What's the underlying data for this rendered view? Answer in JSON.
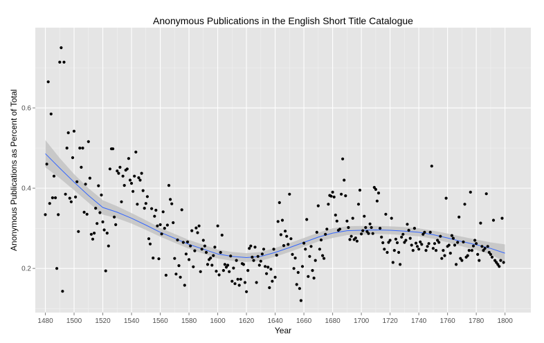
{
  "chart_data": {
    "type": "scatter",
    "title": "Anonymous Publications in the English Short Title Catalogue",
    "xlabel": "Year",
    "ylabel": "Anonymous Publications as Percent of Total",
    "xlim": [
      1473,
      1818
    ],
    "ylim": [
      0.09,
      0.8
    ],
    "x_ticks": [
      "1480",
      "1500",
      "1520",
      "1540",
      "1560",
      "1580",
      "1600",
      "1620",
      "1640",
      "1660",
      "1680",
      "1700",
      "1720",
      "1740",
      "1760",
      "1780",
      "1800"
    ],
    "y_ticks": [
      "0.2",
      "0.4",
      "0.6"
    ],
    "grid": true,
    "legend": "none",
    "colors": {
      "panel": "#e5e5e5",
      "grid_major": "#ffffff",
      "grid_minor": "#f2f2f2",
      "point": "#000000",
      "smooth_line": "#3366ff",
      "confidence_band": "#bdbdbd"
    },
    "points": [
      [
        1480,
        0.334
      ],
      [
        1481,
        0.46
      ],
      [
        1482,
        0.665
      ],
      [
        1483,
        0.362
      ],
      [
        1484,
        0.585
      ],
      [
        1485,
        0.376
      ],
      [
        1486,
        0.43
      ],
      [
        1487,
        0.376
      ],
      [
        1488,
        0.2
      ],
      [
        1489,
        0.334
      ],
      [
        1490,
        0.714
      ],
      [
        1491,
        0.75
      ],
      [
        1492,
        0.143
      ],
      [
        1493,
        0.714
      ],
      [
        1494,
        0.385
      ],
      [
        1495,
        0.5
      ],
      [
        1496,
        0.538
      ],
      [
        1497,
        0.375
      ],
      [
        1498,
        0.366
      ],
      [
        1499,
        0.476
      ],
      [
        1500,
        0.542
      ],
      [
        1501,
        0.378
      ],
      [
        1502,
        0.416
      ],
      [
        1503,
        0.292
      ],
      [
        1504,
        0.5
      ],
      [
        1505,
        0.452
      ],
      [
        1506,
        0.5
      ],
      [
        1507,
        0.34
      ],
      [
        1508,
        0.41
      ],
      [
        1509,
        0.335
      ],
      [
        1510,
        0.516
      ],
      [
        1511,
        0.425
      ],
      [
        1512,
        0.285
      ],
      [
        1513,
        0.273
      ],
      [
        1514,
        0.288
      ],
      [
        1515,
        0.35
      ],
      [
        1516,
        0.312
      ],
      [
        1517,
        0.406
      ],
      [
        1518,
        0.339
      ],
      [
        1519,
        0.383
      ],
      [
        1520,
        0.316
      ],
      [
        1521,
        0.296
      ],
      [
        1522,
        0.194
      ],
      [
        1523,
        0.288
      ],
      [
        1524,
        0.256
      ],
      [
        1525,
        0.448
      ],
      [
        1526,
        0.498
      ],
      [
        1527,
        0.498
      ],
      [
        1528,
        0.328
      ],
      [
        1529,
        0.309
      ],
      [
        1530,
        0.443
      ],
      [
        1531,
        0.437
      ],
      [
        1532,
        0.452
      ],
      [
        1533,
        0.366
      ],
      [
        1534,
        0.43
      ],
      [
        1535,
        0.407
      ],
      [
        1536,
        0.445
      ],
      [
        1537,
        0.448
      ],
      [
        1538,
        0.474
      ],
      [
        1539,
        0.42
      ],
      [
        1540,
        0.412
      ],
      [
        1541,
        0.392
      ],
      [
        1542,
        0.43
      ],
      [
        1543,
        0.49
      ],
      [
        1544,
        0.36
      ],
      [
        1545,
        0.426
      ],
      [
        1546,
        0.42
      ],
      [
        1547,
        0.437
      ],
      [
        1548,
        0.394
      ],
      [
        1549,
        0.35
      ],
      [
        1550,
        0.362
      ],
      [
        1551,
        0.379
      ],
      [
        1552,
        0.274
      ],
      [
        1553,
        0.261
      ],
      [
        1554,
        0.349
      ],
      [
        1555,
        0.226
      ],
      [
        1556,
        0.33
      ],
      [
        1557,
        0.345
      ],
      [
        1558,
        0.306
      ],
      [
        1559,
        0.224
      ],
      [
        1560,
        0.309
      ],
      [
        1561,
        0.286
      ],
      [
        1562,
        0.341
      ],
      [
        1563,
        0.3
      ],
      [
        1564,
        0.183
      ],
      [
        1565,
        0.308
      ],
      [
        1566,
        0.407
      ],
      [
        1567,
        0.372
      ],
      [
        1568,
        0.361
      ],
      [
        1569,
        0.314
      ],
      [
        1570,
        0.225
      ],
      [
        1571,
        0.186
      ],
      [
        1572,
        0.271
      ],
      [
        1573,
        0.207
      ],
      [
        1574,
        0.178
      ],
      [
        1575,
        0.346
      ],
      [
        1576,
        0.265
      ],
      [
        1577,
        0.158
      ],
      [
        1578,
        0.236
      ],
      [
        1579,
        0.266
      ],
      [
        1580,
        0.222
      ],
      [
        1581,
        0.256
      ],
      [
        1582,
        0.294
      ],
      [
        1583,
        0.204
      ],
      [
        1584,
        0.244
      ],
      [
        1585,
        0.301
      ],
      [
        1586,
        0.289
      ],
      [
        1587,
        0.306
      ],
      [
        1588,
        0.192
      ],
      [
        1589,
        0.248
      ],
      [
        1590,
        0.27
      ],
      [
        1591,
        0.256
      ],
      [
        1592,
        0.24
      ],
      [
        1593,
        0.21
      ],
      [
        1594,
        0.222
      ],
      [
        1595,
        0.226
      ],
      [
        1596,
        0.208
      ],
      [
        1597,
        0.232
      ],
      [
        1598,
        0.253
      ],
      [
        1599,
        0.193
      ],
      [
        1600,
        0.306
      ],
      [
        1601,
        0.184
      ],
      [
        1602,
        0.24
      ],
      [
        1603,
        0.283
      ],
      [
        1604,
        0.195
      ],
      [
        1605,
        0.21
      ],
      [
        1606,
        0.203
      ],
      [
        1607,
        0.208
      ],
      [
        1608,
        0.192
      ],
      [
        1609,
        0.231
      ],
      [
        1610,
        0.168
      ],
      [
        1611,
        0.201
      ],
      [
        1612,
        0.162
      ],
      [
        1613,
        0.22
      ],
      [
        1614,
        0.173
      ],
      [
        1615,
        0.158
      ],
      [
        1616,
        0.173
      ],
      [
        1617,
        0.212
      ],
      [
        1618,
        0.21
      ],
      [
        1619,
        0.165
      ],
      [
        1620,
        0.142
      ],
      [
        1621,
        0.195
      ],
      [
        1622,
        0.25
      ],
      [
        1623,
        0.256
      ],
      [
        1624,
        0.228
      ],
      [
        1625,
        0.22
      ],
      [
        1626,
        0.253
      ],
      [
        1627,
        0.165
      ],
      [
        1628,
        0.23
      ],
      [
        1629,
        0.208
      ],
      [
        1630,
        0.218
      ],
      [
        1631,
        0.236
      ],
      [
        1632,
        0.248
      ],
      [
        1633,
        0.205
      ],
      [
        1634,
        0.187
      ],
      [
        1635,
        0.203
      ],
      [
        1636,
        0.152
      ],
      [
        1637,
        0.198
      ],
      [
        1638,
        0.168
      ],
      [
        1639,
        0.248
      ],
      [
        1640,
        0.178
      ],
      [
        1641,
        0.233
      ],
      [
        1642,
        0.317
      ],
      [
        1643,
        0.364
      ],
      [
        1644,
        0.284
      ],
      [
        1645,
        0.32
      ],
      [
        1646,
        0.257
      ],
      [
        1647,
        0.293
      ],
      [
        1648,
        0.28
      ],
      [
        1649,
        0.26
      ],
      [
        1650,
        0.385
      ],
      [
        1651,
        0.274
      ],
      [
        1652,
        0.235
      ],
      [
        1653,
        0.2
      ],
      [
        1654,
        0.226
      ],
      [
        1655,
        0.16
      ],
      [
        1656,
        0.19
      ],
      [
        1657,
        0.15
      ],
      [
        1658,
        0.12
      ],
      [
        1659,
        0.205
      ],
      [
        1660,
        0.263
      ],
      [
        1661,
        0.248
      ],
      [
        1662,
        0.322
      ],
      [
        1663,
        0.18
      ],
      [
        1664,
        0.23
      ],
      [
        1665,
        0.255
      ],
      [
        1666,
        0.195
      ],
      [
        1667,
        0.176
      ],
      [
        1668,
        0.22
      ],
      [
        1669,
        0.29
      ],
      [
        1670,
        0.356
      ],
      [
        1671,
        0.248
      ],
      [
        1672,
        0.271
      ],
      [
        1673,
        0.232
      ],
      [
        1674,
        0.225
      ],
      [
        1675,
        0.285
      ],
      [
        1676,
        0.298
      ],
      [
        1677,
        0.36
      ],
      [
        1678,
        0.382
      ],
      [
        1679,
        0.38
      ],
      [
        1680,
        0.39
      ],
      [
        1681,
        0.378
      ],
      [
        1682,
        0.333
      ],
      [
        1683,
        0.318
      ],
      [
        1684,
        0.295
      ],
      [
        1685,
        0.298
      ],
      [
        1686,
        0.385
      ],
      [
        1687,
        0.473
      ],
      [
        1688,
        0.42
      ],
      [
        1689,
        0.381
      ],
      [
        1690,
        0.318
      ],
      [
        1691,
        0.302
      ],
      [
        1692,
        0.272
      ],
      [
        1693,
        0.28
      ],
      [
        1694,
        0.325
      ],
      [
        1695,
        0.272
      ],
      [
        1696,
        0.276
      ],
      [
        1697,
        0.268
      ],
      [
        1698,
        0.36
      ],
      [
        1699,
        0.395
      ],
      [
        1700,
        0.286
      ],
      [
        1701,
        0.294
      ],
      [
        1702,
        0.33
      ],
      [
        1703,
        0.302
      ],
      [
        1704,
        0.292
      ],
      [
        1705,
        0.287
      ],
      [
        1706,
        0.311
      ],
      [
        1707,
        0.302
      ],
      [
        1708,
        0.287
      ],
      [
        1709,
        0.402
      ],
      [
        1710,
        0.397
      ],
      [
        1711,
        0.368
      ],
      [
        1712,
        0.388
      ],
      [
        1713,
        0.3
      ],
      [
        1714,
        0.278
      ],
      [
        1715,
        0.264
      ],
      [
        1716,
        0.248
      ],
      [
        1717,
        0.335
      ],
      [
        1718,
        0.24
      ],
      [
        1719,
        0.265
      ],
      [
        1720,
        0.27
      ],
      [
        1721,
        0.325
      ],
      [
        1722,
        0.215
      ],
      [
        1723,
        0.245
      ],
      [
        1724,
        0.273
      ],
      [
        1725,
        0.264
      ],
      [
        1726,
        0.24
      ],
      [
        1727,
        0.21
      ],
      [
        1728,
        0.278
      ],
      [
        1729,
        0.285
      ],
      [
        1730,
        0.265
      ],
      [
        1731,
        0.27
      ],
      [
        1732,
        0.31
      ],
      [
        1733,
        0.295
      ],
      [
        1734,
        0.275
      ],
      [
        1735,
        0.258
      ],
      [
        1736,
        0.245
      ],
      [
        1737,
        0.3
      ],
      [
        1738,
        0.263
      ],
      [
        1739,
        0.255
      ],
      [
        1740,
        0.248
      ],
      [
        1741,
        0.266
      ],
      [
        1742,
        0.26
      ],
      [
        1743,
        0.285
      ],
      [
        1744,
        0.29
      ],
      [
        1745,
        0.245
      ],
      [
        1746,
        0.255
      ],
      [
        1747,
        0.262
      ],
      [
        1748,
        0.29
      ],
      [
        1749,
        0.455
      ],
      [
        1750,
        0.25
      ],
      [
        1751,
        0.262
      ],
      [
        1752,
        0.245
      ],
      [
        1753,
        0.27
      ],
      [
        1754,
        0.265
      ],
      [
        1755,
        0.28
      ],
      [
        1756,
        0.225
      ],
      [
        1757,
        0.245
      ],
      [
        1758,
        0.232
      ],
      [
        1759,
        0.375
      ],
      [
        1760,
        0.255
      ],
      [
        1761,
        0.258
      ],
      [
        1762,
        0.238
      ],
      [
        1763,
        0.282
      ],
      [
        1764,
        0.275
      ],
      [
        1765,
        0.258
      ],
      [
        1766,
        0.21
      ],
      [
        1767,
        0.265
      ],
      [
        1768,
        0.328
      ],
      [
        1769,
        0.225
      ],
      [
        1770,
        0.22
      ],
      [
        1771,
        0.266
      ],
      [
        1772,
        0.36
      ],
      [
        1773,
        0.228
      ],
      [
        1774,
        0.232
      ],
      [
        1775,
        0.245
      ],
      [
        1776,
        0.39
      ],
      [
        1777,
        0.245
      ],
      [
        1778,
        0.256
      ],
      [
        1779,
        0.27
      ],
      [
        1780,
        0.262
      ],
      [
        1781,
        0.235
      ],
      [
        1782,
        0.22
      ],
      [
        1783,
        0.313
      ],
      [
        1784,
        0.255
      ],
      [
        1785,
        0.245
      ],
      [
        1786,
        0.25
      ],
      [
        1787,
        0.386
      ],
      [
        1788,
        0.255
      ],
      [
        1789,
        0.24
      ],
      [
        1790,
        0.235
      ],
      [
        1791,
        0.228
      ],
      [
        1792,
        0.32
      ],
      [
        1793,
        0.22
      ],
      [
        1794,
        0.215
      ],
      [
        1795,
        0.21
      ],
      [
        1796,
        0.205
      ],
      [
        1797,
        0.22
      ],
      [
        1798,
        0.325
      ],
      [
        1799,
        0.215
      ]
    ],
    "smooth_line": [
      [
        1480,
        0.486
      ],
      [
        1490,
        0.45
      ],
      [
        1500,
        0.415
      ],
      [
        1510,
        0.382
      ],
      [
        1520,
        0.352
      ],
      [
        1530,
        0.34
      ],
      [
        1540,
        0.325
      ],
      [
        1550,
        0.308
      ],
      [
        1560,
        0.29
      ],
      [
        1570,
        0.275
      ],
      [
        1580,
        0.26
      ],
      [
        1590,
        0.248
      ],
      [
        1600,
        0.236
      ],
      [
        1610,
        0.23
      ],
      [
        1620,
        0.227
      ],
      [
        1630,
        0.23
      ],
      [
        1640,
        0.24
      ],
      [
        1650,
        0.252
      ],
      [
        1660,
        0.265
      ],
      [
        1670,
        0.278
      ],
      [
        1680,
        0.288
      ],
      [
        1690,
        0.294
      ],
      [
        1700,
        0.295
      ],
      [
        1710,
        0.296
      ],
      [
        1720,
        0.295
      ],
      [
        1730,
        0.293
      ],
      [
        1740,
        0.29
      ],
      [
        1750,
        0.284
      ],
      [
        1760,
        0.276
      ],
      [
        1770,
        0.267
      ],
      [
        1780,
        0.259
      ],
      [
        1790,
        0.25
      ],
      [
        1800,
        0.238
      ]
    ],
    "band_upper": [
      [
        1480,
        0.52
      ],
      [
        1490,
        0.475
      ],
      [
        1500,
        0.435
      ],
      [
        1510,
        0.4
      ],
      [
        1520,
        0.37
      ],
      [
        1530,
        0.355
      ],
      [
        1540,
        0.338
      ],
      [
        1550,
        0.32
      ],
      [
        1560,
        0.301
      ],
      [
        1570,
        0.286
      ],
      [
        1580,
        0.271
      ],
      [
        1590,
        0.259
      ],
      [
        1600,
        0.247
      ],
      [
        1610,
        0.241
      ],
      [
        1620,
        0.238
      ],
      [
        1630,
        0.241
      ],
      [
        1640,
        0.251
      ],
      [
        1650,
        0.263
      ],
      [
        1660,
        0.276
      ],
      [
        1670,
        0.289
      ],
      [
        1680,
        0.3
      ],
      [
        1690,
        0.305
      ],
      [
        1700,
        0.306
      ],
      [
        1710,
        0.306
      ],
      [
        1720,
        0.305
      ],
      [
        1730,
        0.303
      ],
      [
        1740,
        0.3
      ],
      [
        1750,
        0.294
      ],
      [
        1760,
        0.287
      ],
      [
        1770,
        0.279
      ],
      [
        1780,
        0.272
      ],
      [
        1790,
        0.265
      ],
      [
        1800,
        0.26
      ]
    ],
    "band_lower": [
      [
        1480,
        0.452
      ],
      [
        1490,
        0.425
      ],
      [
        1500,
        0.395
      ],
      [
        1510,
        0.364
      ],
      [
        1520,
        0.334
      ],
      [
        1530,
        0.325
      ],
      [
        1540,
        0.312
      ],
      [
        1550,
        0.296
      ],
      [
        1560,
        0.279
      ],
      [
        1570,
        0.264
      ],
      [
        1580,
        0.249
      ],
      [
        1590,
        0.237
      ],
      [
        1600,
        0.225
      ],
      [
        1610,
        0.219
      ],
      [
        1620,
        0.216
      ],
      [
        1630,
        0.219
      ],
      [
        1640,
        0.229
      ],
      [
        1650,
        0.241
      ],
      [
        1660,
        0.254
      ],
      [
        1670,
        0.267
      ],
      [
        1680,
        0.276
      ],
      [
        1690,
        0.283
      ],
      [
        1700,
        0.284
      ],
      [
        1710,
        0.286
      ],
      [
        1720,
        0.285
      ],
      [
        1730,
        0.283
      ],
      [
        1740,
        0.28
      ],
      [
        1750,
        0.274
      ],
      [
        1760,
        0.265
      ],
      [
        1770,
        0.255
      ],
      [
        1780,
        0.246
      ],
      [
        1790,
        0.235
      ],
      [
        1800,
        0.216
      ]
    ]
  }
}
